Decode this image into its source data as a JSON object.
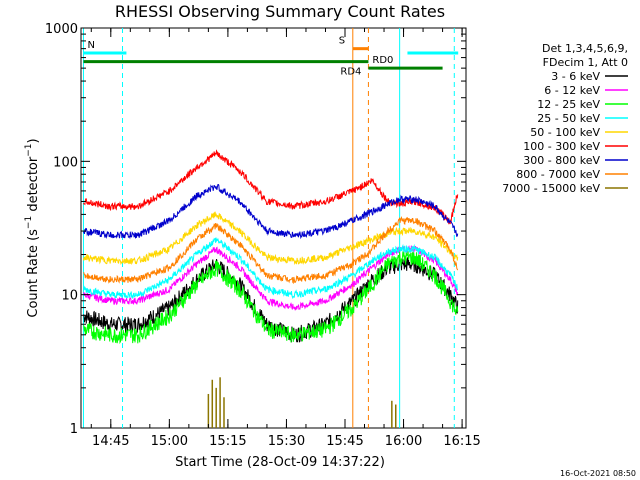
{
  "chart_data": {
    "type": "line",
    "title": "RHESSI Observing Summary Count Rates",
    "xlabel": "Start Time (28-Oct-09 14:37:22)",
    "ylabel": "Count Rate (s⁻¹ detector⁻¹)",
    "ylabel_parts": {
      "pre": "Count Rate (s",
      "sup1": "−1",
      "mid": " detector",
      "sup2": "−1",
      "post": ")"
    },
    "y_scale": "log",
    "ylim": [
      1,
      1000
    ],
    "xlim": [
      "14:37:22",
      "16:16:00"
    ],
    "x_ticks": [
      "14:45",
      "15:00",
      "15:15",
      "15:30",
      "15:45",
      "16:00",
      "16:15"
    ],
    "y_ticks": [
      "1",
      "10",
      "100",
      "1000"
    ],
    "timestamp": "16-Oct-2021 08:50",
    "legend_header": [
      "Det 1,3,4,5,6,9,",
      "FDecim 1, Att 0"
    ],
    "legend_position": "right",
    "series": [
      {
        "name": "3 - 6 keV",
        "color": "#000000",
        "x": [
          "14:38",
          "14:45",
          "14:52",
          "15:00",
          "15:07",
          "15:12",
          "15:18",
          "15:25",
          "15:32",
          "15:40",
          "15:47",
          "15:52",
          "15:56",
          "15:59",
          "16:03",
          "16:08",
          "16:12",
          "16:14"
        ],
        "y": [
          7,
          6,
          6,
          8,
          13,
          17,
          12,
          6,
          5,
          6,
          9,
          13,
          16,
          17,
          17,
          14,
          10,
          8
        ]
      },
      {
        "name": "6 - 12 keV",
        "color": "#ff00ff",
        "x": [
          "14:38",
          "14:45",
          "14:52",
          "15:00",
          "15:07",
          "15:12",
          "15:18",
          "15:25",
          "15:32",
          "15:40",
          "15:47",
          "15:52",
          "15:56",
          "15:59",
          "16:03",
          "16:08",
          "16:12",
          "16:14"
        ],
        "y": [
          10,
          9,
          9,
          11,
          17,
          22,
          16,
          9,
          8,
          9,
          12,
          16,
          20,
          22,
          22,
          18,
          13,
          10
        ]
      },
      {
        "name": "12 - 25 keV",
        "color": "#00ff00",
        "x": [
          "14:38",
          "14:45",
          "14:52",
          "15:00",
          "15:07",
          "15:12",
          "15:18",
          "15:25",
          "15:32",
          "15:40",
          "15:47",
          "15:52",
          "15:56",
          "15:59",
          "16:03",
          "16:08",
          "16:12",
          "16:14"
        ],
        "y": [
          5.5,
          5,
          5,
          7,
          12,
          16,
          11,
          5.5,
          5,
          5.5,
          8,
          12,
          17,
          19,
          19,
          14,
          9,
          7
        ]
      },
      {
        "name": "25 - 50 keV",
        "color": "#00ffff",
        "x": [
          "14:38",
          "14:45",
          "14:52",
          "15:00",
          "15:07",
          "15:12",
          "15:18",
          "15:25",
          "15:32",
          "15:40",
          "15:47",
          "15:52",
          "15:56",
          "15:59",
          "16:03",
          "16:08",
          "16:12",
          "16:14"
        ],
        "y": [
          11,
          10,
          10,
          13,
          20,
          26,
          19,
          11,
          10,
          11,
          14,
          18,
          21,
          22,
          22,
          19,
          14,
          11
        ]
      },
      {
        "name": "50 - 100 keV",
        "color": "#ffd700",
        "x": [
          "14:38",
          "14:45",
          "14:52",
          "15:00",
          "15:07",
          "15:12",
          "15:18",
          "15:25",
          "15:32",
          "15:40",
          "15:47",
          "15:52",
          "15:56",
          "15:59",
          "16:03",
          "16:08",
          "16:12",
          "16:14"
        ],
        "y": [
          19,
          18,
          18,
          22,
          33,
          40,
          30,
          19,
          18,
          19,
          23,
          26,
          29,
          30,
          30,
          27,
          21,
          18
        ]
      },
      {
        "name": "100 - 300 keV",
        "color": "#ff0000",
        "x": [
          "14:38",
          "14:45",
          "14:52",
          "15:00",
          "15:07",
          "15:12",
          "15:18",
          "15:25",
          "15:32",
          "15:40",
          "15:47",
          "15:52",
          "15:56",
          "15:59",
          "16:03",
          "16:08",
          "16:12",
          "16:14"
        ],
        "y": [
          50,
          46,
          46,
          60,
          90,
          115,
          85,
          50,
          46,
          50,
          60,
          72,
          50,
          48,
          50,
          45,
          35,
          60
        ]
      },
      {
        "name": "300 - 800 keV",
        "color": "#0000cc",
        "x": [
          "14:38",
          "14:45",
          "14:52",
          "15:00",
          "15:07",
          "15:12",
          "15:18",
          "15:25",
          "15:32",
          "15:40",
          "15:47",
          "15:52",
          "15:56",
          "15:59",
          "16:03",
          "16:08",
          "16:12",
          "16:14"
        ],
        "y": [
          30,
          28,
          28,
          36,
          55,
          65,
          50,
          30,
          28,
          30,
          36,
          42,
          48,
          52,
          52,
          46,
          34,
          28
        ]
      },
      {
        "name": "800 - 7000 keV",
        "color": "#ff8000",
        "x": [
          "14:38",
          "14:45",
          "14:52",
          "15:00",
          "15:07",
          "15:12",
          "15:18",
          "15:25",
          "15:32",
          "15:40",
          "15:47",
          "15:52",
          "15:56",
          "15:59",
          "16:03",
          "16:08",
          "16:12",
          "16:14"
        ],
        "y": [
          14,
          13,
          13,
          16,
          26,
          33,
          24,
          14,
          13,
          14,
          17,
          22,
          30,
          36,
          36,
          30,
          22,
          15
        ]
      },
      {
        "name": "7000 - 15000 keV",
        "color": "#8b7500",
        "x": [
          "15:10",
          "15:11",
          "15:12",
          "15:13",
          "15:14",
          "15:57",
          "15:58"
        ],
        "y": [
          1.8,
          2.3,
          2.0,
          2.4,
          1.7,
          1.6,
          1.5
        ]
      }
    ],
    "bars": [
      {
        "label": "N",
        "color": "#00ffff",
        "segments": [
          [
            "14:38",
            "14:49"
          ],
          [
            "16:01",
            "16:14"
          ]
        ],
        "level": 650
      },
      {
        "label": "S",
        "color": "#ff8000",
        "segments": [
          [
            "15:47",
            "15:51"
          ]
        ],
        "level": 700
      },
      {
        "label": "RD0",
        "color": "#008000",
        "segments": [
          [
            "15:51",
            "16:10"
          ]
        ],
        "level": 500
      },
      {
        "label": "RD4",
        "color": "#008000",
        "segments": [
          [
            "14:38",
            "15:51"
          ]
        ],
        "level": 560
      }
    ],
    "vlines": [
      {
        "x": "14:38",
        "color": "#00ffff",
        "style": "solid"
      },
      {
        "x": "14:48",
        "color": "#00ffff",
        "style": "dashed"
      },
      {
        "x": "15:47",
        "color": "#ff8000",
        "style": "solid"
      },
      {
        "x": "15:51",
        "color": "#ff8000",
        "style": "dashed"
      },
      {
        "x": "15:59",
        "color": "#00ffff",
        "style": "solid"
      },
      {
        "x": "16:13",
        "color": "#00ffff",
        "style": "dashed"
      }
    ]
  }
}
